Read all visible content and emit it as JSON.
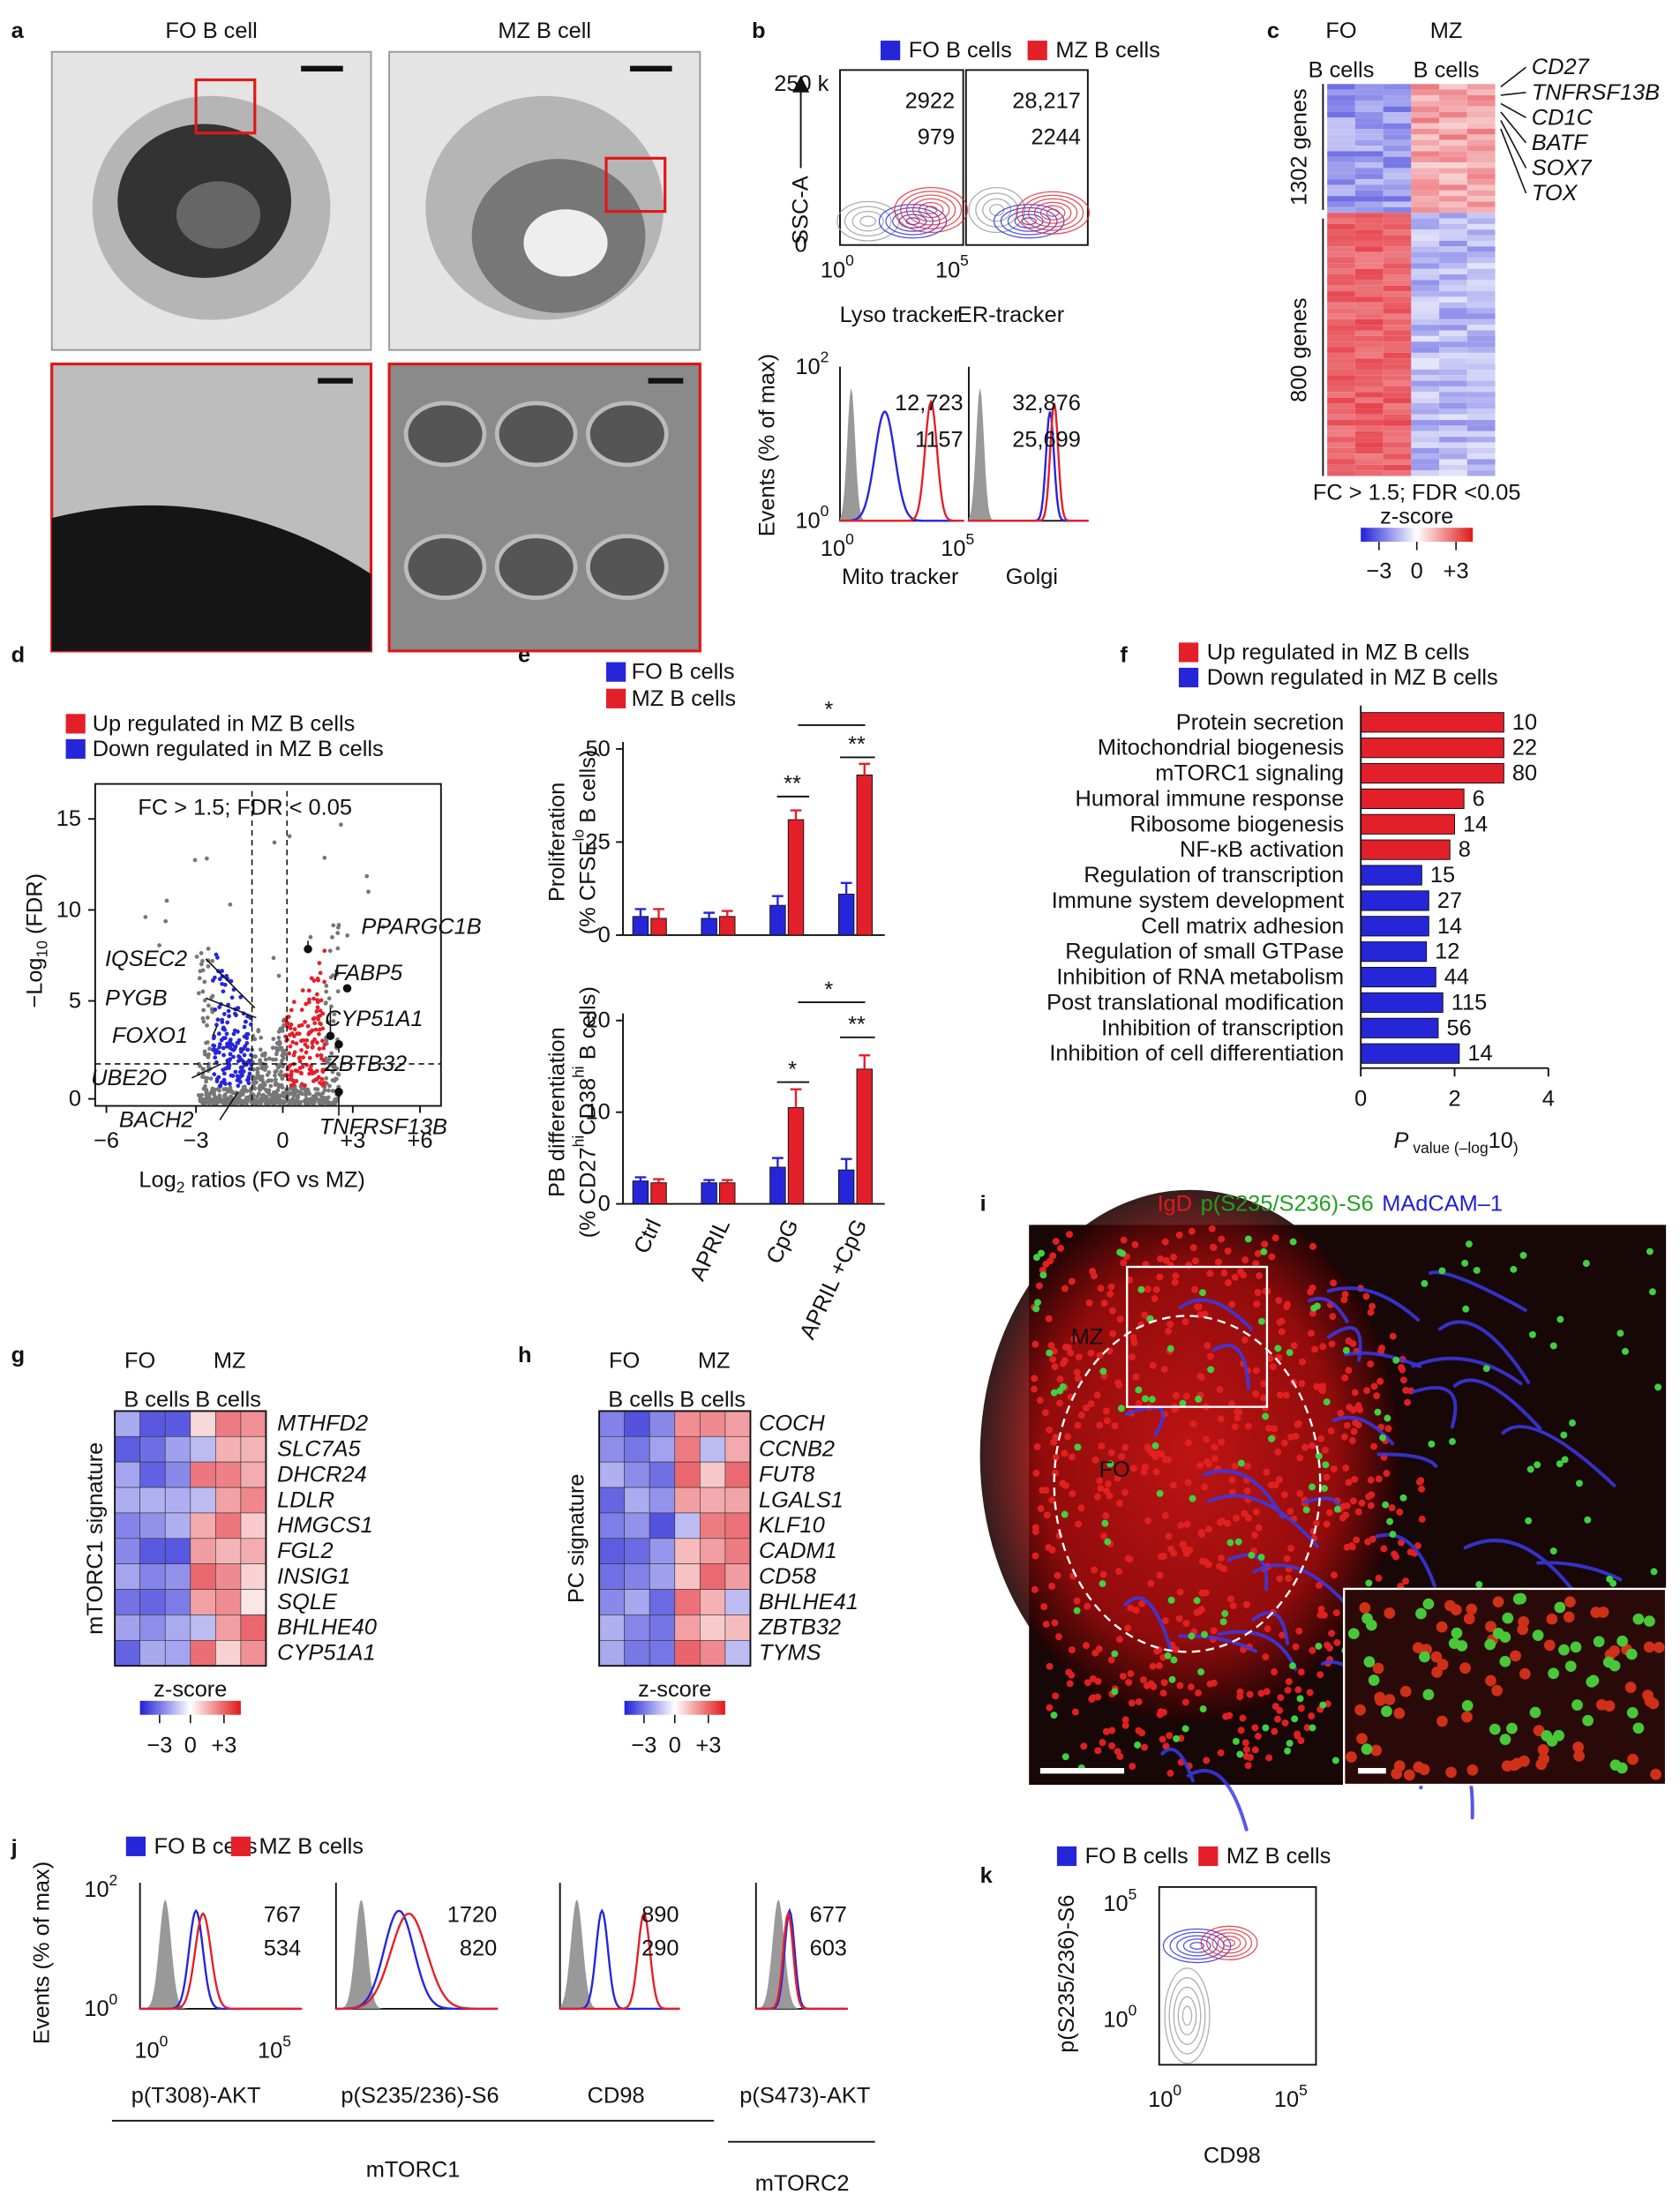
{
  "panel_labels": [
    "a",
    "b",
    "c",
    "d",
    "e",
    "f",
    "g",
    "h",
    "i",
    "j",
    "k"
  ],
  "panel_a": {
    "titles": [
      "FO B cell",
      "MZ B cell"
    ]
  },
  "panel_b": {
    "legend": [
      "FO B cells",
      "MZ B cells"
    ],
    "y_label": "SSC-A",
    "y_top": "250 k",
    "y_zero": "0",
    "x_ticks": [
      [
        "10",
        "0"
      ],
      [
        "10",
        "5"
      ]
    ],
    "top_counts": [
      [
        "2922",
        "979"
      ],
      [
        "28,217",
        "2244"
      ]
    ],
    "top_titles": [
      "Lyso tracker",
      "ER-tracker"
    ],
    "bottom_counts": [
      [
        "12,723",
        "1157"
      ],
      [
        "32,876",
        "25,699"
      ]
    ],
    "bottom_y_label": "Events (% of max)",
    "bottom_y_ticks": [
      [
        "10",
        "2"
      ],
      [
        "10",
        "0"
      ]
    ],
    "bottom_x_ticks": [
      [
        "10",
        "0"
      ],
      [
        "10",
        "5"
      ]
    ],
    "bottom_titles": [
      "Mito tracker",
      "Golgi"
    ]
  },
  "panel_c": {
    "headers": [
      "FO",
      "MZ"
    ],
    "subheaders": [
      "B cells",
      "B cells"
    ],
    "genes": [
      "CD27",
      "TNFRSF13B",
      "CD1C",
      "BATF",
      "SOX7",
      "TOX"
    ],
    "groups": [
      "1302 genes",
      "800 genes"
    ],
    "note": "FC > 1.5; FDR <0.05",
    "scale_title": "z-score",
    "scale_ticks": [
      "−3",
      "0",
      "+3"
    ]
  },
  "panel_d": {
    "legend": [
      "Up regulated in MZ B cells",
      "Down regulated in MZ B cells"
    ],
    "note": "FC > 1.5; FDR < 0.05",
    "y_label": [
      "−Log",
      "10",
      " (FDR)"
    ],
    "y_ticks": [
      "0",
      "5",
      "10",
      "15"
    ],
    "x_ticks": [
      "−6",
      "−3",
      "0",
      "+3",
      "+6"
    ],
    "x_label": [
      "Log",
      "2",
      " ratios (FO vs MZ)"
    ],
    "up_genes": [
      "PPARGC1B",
      "FABP5",
      "CYP51A1",
      "ZBTB32",
      "TNFRSF13B"
    ],
    "down_genes": [
      "IQSEC2",
      "PYGB",
      "FOXO1",
      "UBE2O",
      "BACH2"
    ]
  },
  "panel_g": {
    "headers": [
      "FO",
      "MZ"
    ],
    "subheaders": [
      "B cells",
      "B cells"
    ],
    "y_label": "mTORC1 signature",
    "genes": [
      "MTHFD2",
      "SLC7A5",
      "DHCR24",
      "LDLR",
      "HMGCS1",
      "FGL2",
      "INSIG1",
      "SQLE",
      "BHLHE40",
      "CYP51A1"
    ],
    "scale_title": "z-score",
    "scale_ticks": [
      "−3",
      "0",
      "+3"
    ]
  },
  "panel_h": {
    "headers": [
      "FO",
      "MZ"
    ],
    "subheaders": [
      "B cells",
      "B cells"
    ],
    "y_label": "PC signature",
    "genes": [
      "COCH",
      "CCNB2",
      "FUT8",
      "LGALS1",
      "KLF10",
      "CADM1",
      "CD58",
      "BHLHE41",
      "ZBTB32",
      "TYMS"
    ],
    "scale_title": "z-score",
    "scale_ticks": [
      "−3",
      "0",
      "+3"
    ]
  },
  "panel_i": {
    "title": [
      "IgD",
      "p(S235/S236)-S6",
      "MAdCAM–1"
    ],
    "regions": [
      "MZ",
      "FO"
    ]
  },
  "panel_j": {
    "legend": [
      "FO B cells",
      "MZ B cells"
    ],
    "y_label": "Events (% of max)",
    "y_ticks": [
      [
        "10",
        "2"
      ],
      [
        "10",
        "0"
      ]
    ],
    "x_ticks": [
      [
        "10",
        "0"
      ],
      [
        "10",
        "5"
      ]
    ],
    "plots": [
      {
        "x_label": "p(T308)-AKT",
        "mz": "767",
        "fo": "534"
      },
      {
        "x_label": "p(S235/236)-S6",
        "mz": "1720",
        "fo": "820"
      },
      {
        "x_label": "CD98",
        "mz": "890",
        "fo": "290"
      },
      {
        "x_label": "p(S473)-AKT",
        "mz": "677",
        "fo": "603"
      }
    ],
    "groups": [
      "mTORC1",
      "mTORC2"
    ]
  },
  "panel_k": {
    "legend": [
      "FO B cells",
      "MZ B cells"
    ],
    "y_label": "p(S235/236)-S6",
    "y_ticks": [
      [
        "10",
        "5"
      ],
      [
        "10",
        "0"
      ]
    ],
    "x_ticks": [
      [
        "10",
        "0"
      ],
      [
        "10",
        "5"
      ]
    ],
    "x_label": "CD98"
  },
  "chart_data": [
    {
      "type": "bar",
      "y_label": [
        [
          "Proliferation"
        ],
        [
          "(% CFSE",
          "lo",
          " B cells)"
        ]
      ],
      "series": [
        {
          "name": "FO B cells",
          "color": "#2626d9",
          "values": [
            5,
            4.5,
            8,
            11
          ],
          "errors": [
            2,
            1.5,
            2.5,
            3
          ]
        },
        {
          "name": "MZ B cells",
          "color": "#e3202a",
          "values": [
            4.5,
            5,
            31,
            43
          ],
          "errors": [
            2.5,
            1.5,
            2.5,
            3
          ]
        }
      ],
      "ylim": [
        0,
        50
      ],
      "yticks": [
        0,
        25,
        50
      ],
      "annotations": [
        "*",
        "**",
        "**"
      ]
    },
    {
      "type": "bar",
      "y_label": [
        [
          "PB differentiation"
        ],
        [
          "(% CD27",
          "hi",
          "CD38",
          "hi",
          " B cells)"
        ]
      ],
      "categories": [
        "Ctrl",
        "APRIL",
        "CpG",
        "APRIL +CpG"
      ],
      "series": [
        {
          "color": "#2626d9",
          "values": [
            2.5,
            2.3,
            4,
            3.7
          ],
          "errors": [
            0.4,
            0.3,
            1,
            1.2
          ]
        },
        {
          "color": "#e3202a",
          "values": [
            2.3,
            2.3,
            10.5,
            14.7
          ],
          "errors": [
            0.4,
            0.3,
            2,
            1.5
          ]
        }
      ],
      "ylim": [
        0,
        20
      ],
      "yticks": [
        0,
        10,
        20
      ],
      "annotations": [
        "*",
        "*",
        "**"
      ]
    },
    {
      "type": "hbar",
      "legend": [
        {
          "name": "Up regulated in MZ B cells",
          "color": "#e3202a"
        },
        {
          "name": "Down regulated in MZ B cells",
          "color": "#2626d9"
        }
      ],
      "categories": [
        "Protein secretion",
        "Mitochondrial biogenesis",
        "mTORC1 signaling",
        "Humoral immune response",
        "Ribosome biogenesis",
        "NF-κB activation",
        "Regulation of transcription",
        "Immune system development",
        "Cell matrix adhesion",
        "Regulation of small GTPase",
        "Inhibition of RNA metabolism",
        "Post translational modification",
        "Inhibition of transcription",
        "Inhibition of cell differentiation"
      ],
      "values": [
        3.05,
        3.05,
        3.05,
        2.2,
        2.0,
        1.9,
        1.3,
        1.45,
        1.45,
        1.4,
        1.6,
        1.75,
        1.65,
        2.1
      ],
      "colors": [
        "#e3202a",
        "#e3202a",
        "#e3202a",
        "#e3202a",
        "#e3202a",
        "#e3202a",
        "#2626d9",
        "#2626d9",
        "#2626d9",
        "#2626d9",
        "#2626d9",
        "#2626d9",
        "#2626d9",
        "#2626d9"
      ],
      "gene_counts": [
        10,
        22,
        80,
        6,
        14,
        8,
        15,
        27,
        14,
        12,
        44,
        115,
        56,
        14
      ],
      "xlim": [
        0,
        4
      ],
      "xticks": [
        0,
        2,
        4
      ],
      "x_label": [
        "P",
        " value (–log",
        "10",
        ")"
      ]
    }
  ]
}
